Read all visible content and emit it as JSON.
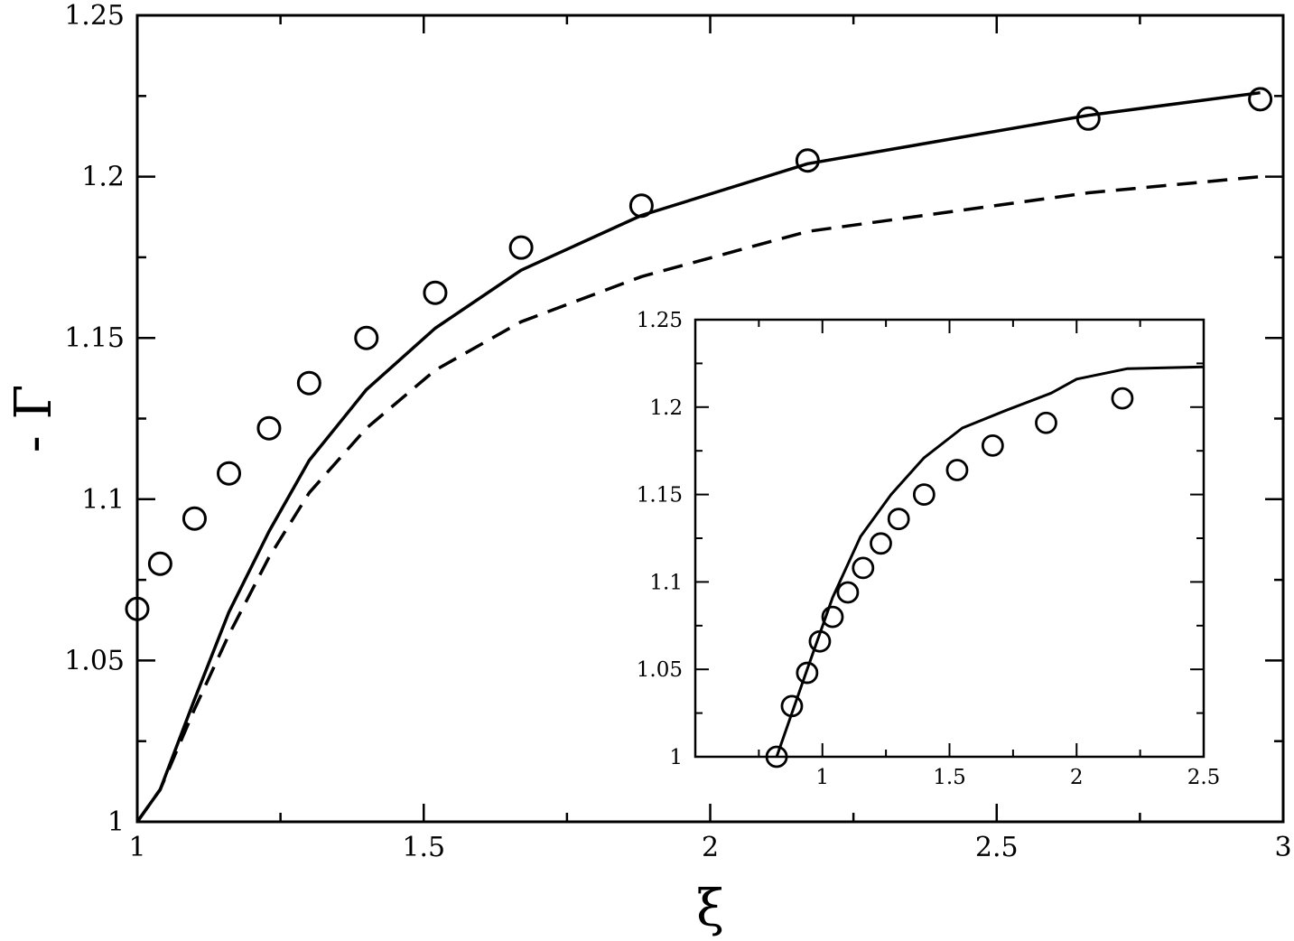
{
  "chart_data": [
    {
      "type": "line",
      "panel": "main",
      "xlabel": "ξ",
      "ylabel": "- Γ",
      "xlim": [
        1,
        3
      ],
      "ylim": [
        1,
        1.25
      ],
      "x_ticks": [
        1,
        1.5,
        2,
        2.5,
        3
      ],
      "x_tick_labels": [
        "1",
        "1.5",
        "2",
        "2.5",
        "3"
      ],
      "y_ticks": [
        1,
        1.05,
        1.1,
        1.15,
        1.2,
        1.25
      ],
      "y_tick_labels": [
        "1",
        "1.05",
        "1.1",
        "1.15",
        "1.2",
        "1.25"
      ],
      "grid": false,
      "series": [
        {
          "style": "solid-line",
          "x": [
            1.0,
            1.04,
            1.1,
            1.16,
            1.23,
            1.3,
            1.4,
            1.52,
            1.67,
            1.88,
            2.17,
            2.66,
            2.96
          ],
          "y": [
            1.0,
            1.01,
            1.038,
            1.065,
            1.09,
            1.112,
            1.134,
            1.153,
            1.171,
            1.188,
            1.204,
            1.219,
            1.226
          ]
        },
        {
          "style": "dashed-line",
          "x": [
            1.0,
            1.04,
            1.1,
            1.16,
            1.23,
            1.3,
            1.4,
            1.52,
            1.67,
            1.88,
            2.17,
            2.66,
            2.96
          ],
          "y": [
            1.0,
            1.01,
            1.035,
            1.058,
            1.082,
            1.102,
            1.122,
            1.14,
            1.155,
            1.169,
            1.183,
            1.195,
            1.2
          ]
        },
        {
          "style": "circle-markers",
          "x": [
            1.0,
            1.04,
            1.1,
            1.16,
            1.23,
            1.3,
            1.4,
            1.52,
            1.67,
            1.88,
            2.17,
            2.66,
            2.96
          ],
          "y": [
            1.066,
            1.08,
            1.094,
            1.108,
            1.122,
            1.136,
            1.15,
            1.164,
            1.178,
            1.191,
            1.205,
            1.218,
            1.224
          ]
        }
      ]
    },
    {
      "type": "line",
      "panel": "inset",
      "xlim": [
        0.5,
        2.5
      ],
      "ylim": [
        1,
        1.25
      ],
      "x_ticks": [
        1,
        1.5,
        2,
        2.5
      ],
      "x_tick_labels": [
        "1",
        "1.5",
        "2",
        "2.5"
      ],
      "y_ticks": [
        1,
        1.05,
        1.1,
        1.15,
        1.2,
        1.25
      ],
      "y_tick_labels": [
        "1",
        "1.05",
        "1.1",
        "1.15",
        "1.2",
        "1.25"
      ],
      "grid": false,
      "series": [
        {
          "style": "solid-line",
          "x": [
            0.82,
            0.94,
            1.04,
            1.15,
            1.27,
            1.4,
            1.55,
            1.72,
            1.9,
            2.0,
            2.2,
            2.5
          ],
          "y": [
            1.0,
            1.05,
            1.091,
            1.126,
            1.15,
            1.171,
            1.188,
            1.198,
            1.208,
            1.216,
            1.222,
            1.223
          ]
        },
        {
          "style": "circle-markers",
          "x": [
            0.82,
            0.88,
            0.94,
            0.99,
            1.04,
            1.1,
            1.16,
            1.23,
            1.3,
            1.4,
            1.53,
            1.67,
            1.88,
            2.18
          ],
          "y": [
            1.0,
            1.029,
            1.048,
            1.066,
            1.08,
            1.094,
            1.108,
            1.122,
            1.136,
            1.15,
            1.164,
            1.178,
            1.191,
            1.205
          ]
        }
      ]
    }
  ]
}
